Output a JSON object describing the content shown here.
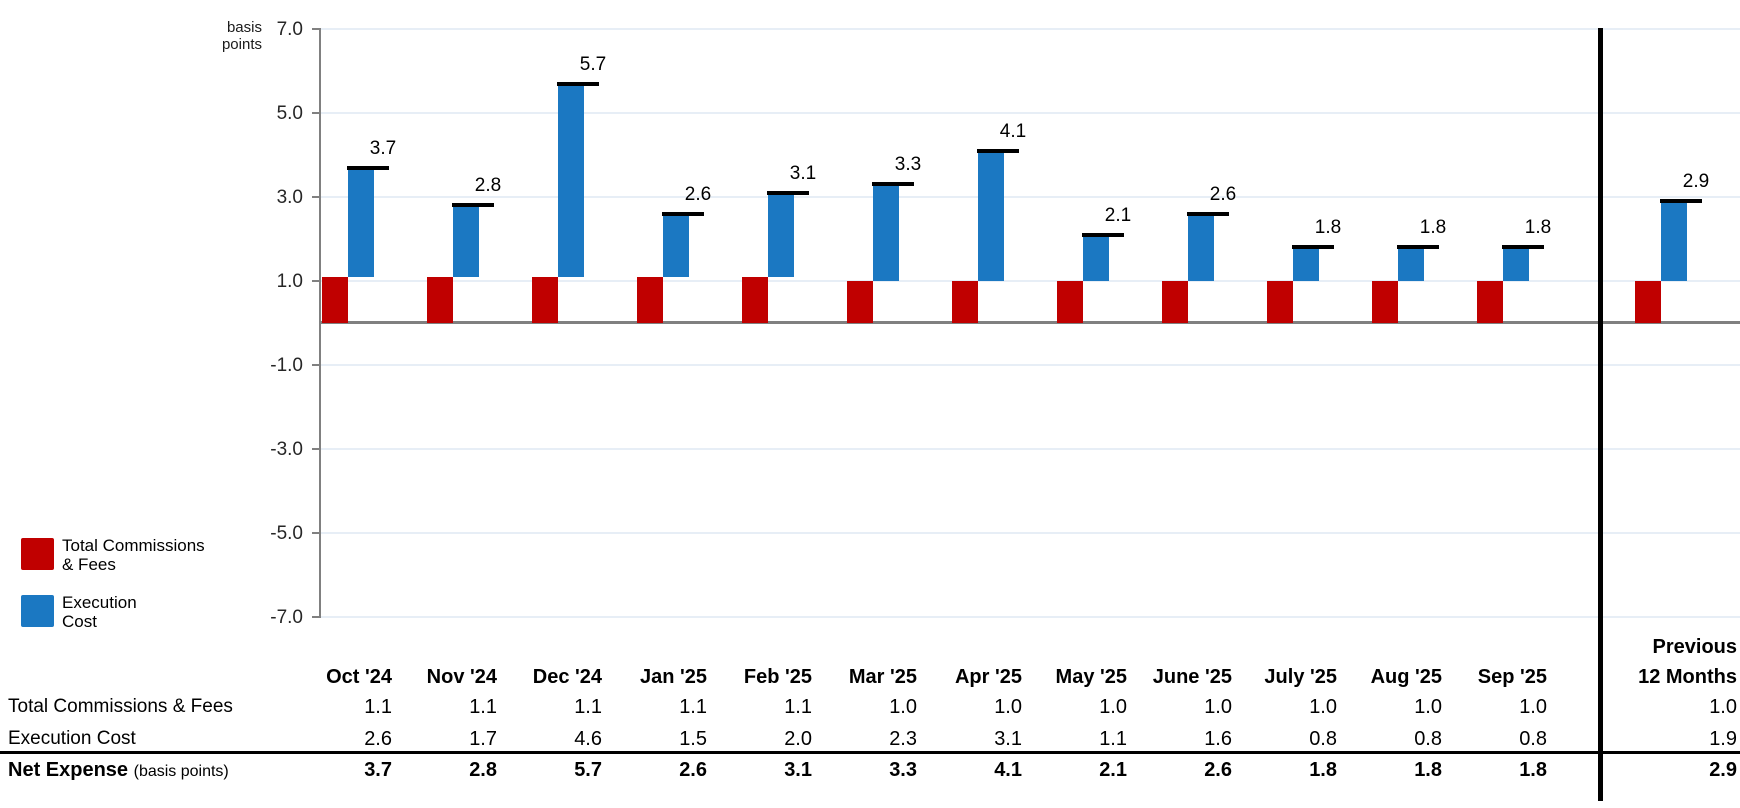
{
  "chart_data": {
    "type": "bar",
    "stacked": true,
    "y_axis_title_lines": [
      "basis",
      "points"
    ],
    "categories": [
      "Oct '24",
      "Nov '24",
      "Dec '24",
      "Jan '25",
      "Feb '25",
      "Mar '25",
      "Apr '25",
      "May '25",
      "June '25",
      "July '25",
      "Aug '25",
      "Sep '25",
      "Previous 12 Months"
    ],
    "series": [
      {
        "name": "Total Commissions & Fees",
        "legend_lines": [
          "Total Commissions",
          "& Fees"
        ],
        "color": "#C00000",
        "values": [
          1.1,
          1.1,
          1.1,
          1.1,
          1.1,
          1.0,
          1.0,
          1.0,
          1.0,
          1.0,
          1.0,
          1.0,
          1.0
        ]
      },
      {
        "name": "Execution Cost",
        "legend_lines": [
          "Execution",
          "Cost"
        ],
        "color": "#1B78C2",
        "values": [
          2.6,
          1.7,
          4.6,
          1.5,
          2.0,
          2.3,
          3.1,
          1.1,
          1.6,
          0.8,
          0.8,
          0.8,
          1.9
        ]
      }
    ],
    "totals": {
      "name": "Net Expense",
      "suffix": "(basis points)",
      "values": [
        3.7,
        2.8,
        5.7,
        2.6,
        3.1,
        3.3,
        4.1,
        2.1,
        2.6,
        1.8,
        1.8,
        1.8,
        2.9
      ]
    },
    "ylim": [
      -7.0,
      7.0
    ],
    "yticks": [
      7.0,
      5.0,
      3.0,
      1.0,
      -1.0,
      -3.0,
      -5.0,
      -7.0
    ],
    "grid": true,
    "legend_position": "bottom-left",
    "colors": {
      "grid": "#E7EEF6",
      "axis": "#808080",
      "zero_line": "#808080",
      "net_marker": "#000000",
      "separator": "#000000"
    }
  },
  "table": {
    "header_last_column_lines": [
      "Previous",
      "12 Months"
    ]
  }
}
